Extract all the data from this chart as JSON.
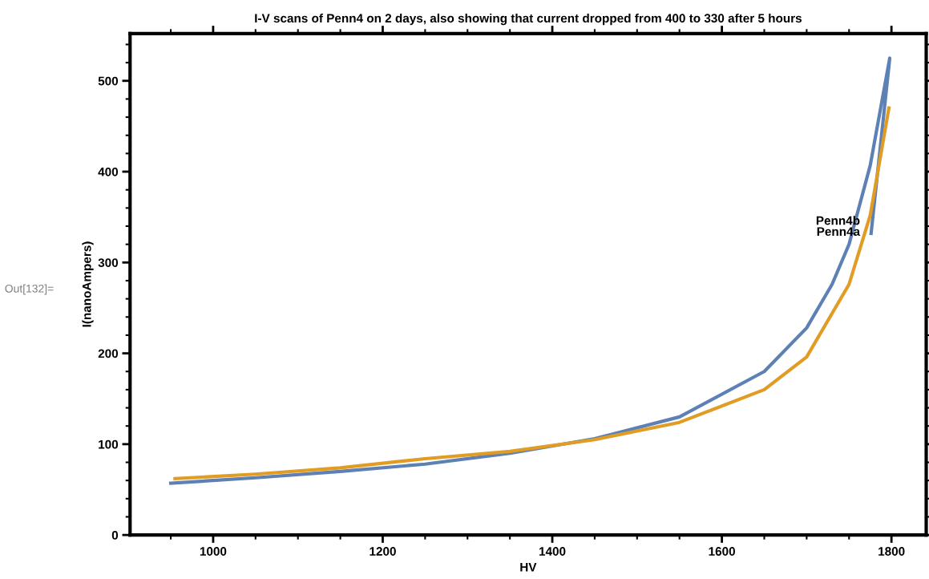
{
  "chart_data": {
    "type": "line",
    "title": "I-V scans of Penn4 on 2 days, also showing that current dropped from 400 to 330 after 5 hours",
    "xlabel": "HV",
    "ylabel": "I(nanoAmpers)",
    "series": [
      {
        "color": "#5e81b5",
        "x": [
          950,
          1050,
          1150,
          1250,
          1350,
          1450,
          1550,
          1650,
          1700,
          1730,
          1750,
          1775,
          1798,
          1776
        ],
        "values": [
          57,
          63,
          70,
          78,
          90,
          106,
          130,
          180,
          228,
          276,
          320,
          407,
          525,
          332
        ]
      },
      {
        "color": "#e19c24",
        "x": [
          955,
          1050,
          1150,
          1250,
          1350,
          1450,
          1550,
          1650,
          1700,
          1750,
          1775,
          1797
        ],
        "values": [
          62,
          67,
          74,
          84,
          92,
          105,
          124,
          160,
          196,
          276,
          352,
          470
        ]
      }
    ],
    "annotations": [
      {
        "text": "Penn4b",
        "x": 1763,
        "y": 345
      },
      {
        "text": "Penn4a",
        "x": 1763,
        "y": 333
      },
      "Out[132]="
    ],
    "xlim": [
      902,
      1841
    ],
    "xticks": [
      1000,
      1200,
      1400,
      1600,
      1800
    ],
    "ylim": [
      0,
      552
    ],
    "yticks": [
      0,
      100,
      200,
      300,
      400,
      500
    ],
    "grid": false,
    "legend": false,
    "line_style": "solid",
    "marker": "none"
  }
}
